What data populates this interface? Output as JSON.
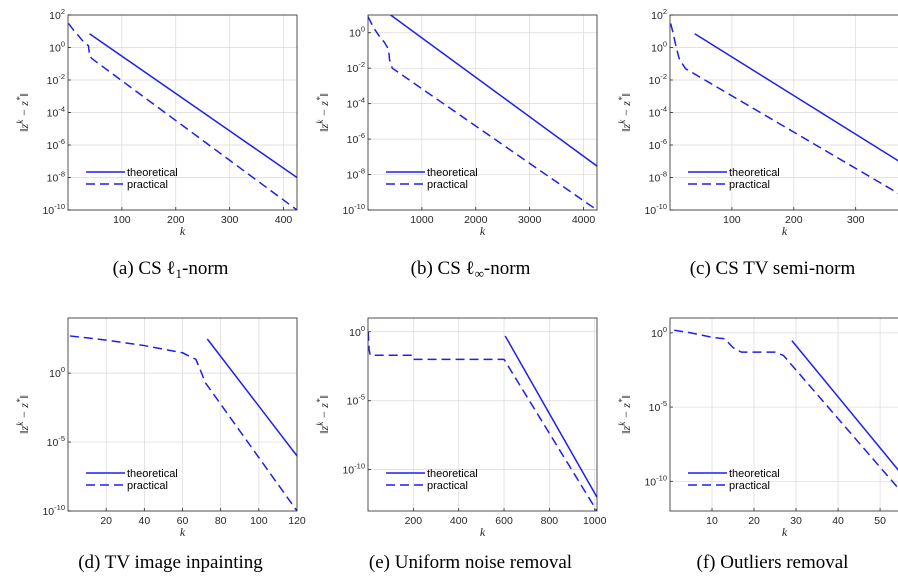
{
  "chart_data": [
    {
      "type": "line",
      "caption": "(a) CS ℓ1-norm",
      "xlabel": "k",
      "ylabel": "||z^k − z*||",
      "yscale": "log",
      "xlim": [
        0,
        425
      ],
      "ylim": [
        1e-10,
        100
      ],
      "xticks": [
        100,
        200,
        300,
        400
      ],
      "yticks": [
        1e-10,
        1e-08,
        1e-06,
        0.0001,
        0.01,
        1,
        100
      ],
      "grid": true,
      "legend": "bottom-left",
      "series": [
        {
          "name": "theoretical",
          "style": "solid",
          "points": [
            [
              40,
              7
            ],
            [
              425,
              1e-08
            ]
          ]
        },
        {
          "name": "practical",
          "style": "dashed",
          "points": [
            [
              1,
              30
            ],
            [
              10,
              12
            ],
            [
              20,
              5
            ],
            [
              30,
              2
            ],
            [
              38,
              1.3
            ],
            [
              40,
              0.3
            ],
            [
              45,
              0.2
            ],
            [
              425,
              1e-10
            ]
          ]
        }
      ]
    },
    {
      "type": "line",
      "caption": "(b) CS ℓ∞-norm",
      "xlabel": "k",
      "ylabel": "||z^k − z*||",
      "yscale": "log",
      "xlim": [
        0,
        4250
      ],
      "ylim": [
        1e-10,
        10
      ],
      "xticks": [
        1000,
        2000,
        3000,
        4000
      ],
      "yticks": [
        1e-10,
        1e-08,
        1e-06,
        0.0001,
        0.01,
        1
      ],
      "grid": true,
      "legend": "bottom-left",
      "series": [
        {
          "name": "theoretical",
          "style": "solid",
          "points": [
            [
              420,
              10
            ],
            [
              4250,
              3e-08
            ]
          ]
        },
        {
          "name": "practical",
          "style": "dashed",
          "points": [
            [
              1,
              8
            ],
            [
              100,
              2
            ],
            [
              200,
              0.7
            ],
            [
              300,
              0.3
            ],
            [
              380,
              0.12
            ],
            [
              400,
              0.03
            ],
            [
              450,
              0.01
            ],
            [
              4250,
              1e-10
            ]
          ]
        }
      ]
    },
    {
      "type": "line",
      "caption": "(c) CS TV semi-norm",
      "xlabel": "k",
      "ylabel": "||z^k − z*||",
      "yscale": "log",
      "xlim": [
        0,
        370
      ],
      "ylim": [
        1e-10,
        100
      ],
      "xticks": [
        100,
        200,
        300
      ],
      "yticks": [
        1e-10,
        1e-08,
        1e-06,
        0.0001,
        0.01,
        1,
        100
      ],
      "grid": true,
      "legend": "bottom-left",
      "series": [
        {
          "name": "theoretical",
          "style": "solid",
          "points": [
            [
              40,
              7
            ],
            [
              370,
              1e-07
            ]
          ]
        },
        {
          "name": "practical",
          "style": "dashed",
          "points": [
            [
              1,
              30
            ],
            [
              5,
              8
            ],
            [
              10,
              1
            ],
            [
              15,
              0.2
            ],
            [
              25,
              0.05
            ],
            [
              370,
              1e-09
            ]
          ]
        }
      ]
    },
    {
      "type": "line",
      "caption": "(d) TV image inpainting",
      "xlabel": "k",
      "ylabel": "||z^k − z*||",
      "yscale": "log",
      "xlim": [
        0,
        120
      ],
      "ylim": [
        1e-10,
        10000.0
      ],
      "xticks": [
        20,
        40,
        60,
        80,
        100,
        120
      ],
      "yticks": [
        1e-10,
        1e-05,
        1
      ],
      "grid": true,
      "legend": "bottom-left",
      "series": [
        {
          "name": "theoretical",
          "style": "solid",
          "points": [
            [
              73,
              300
            ],
            [
              120,
              1e-06
            ]
          ]
        },
        {
          "name": "practical",
          "style": "dashed",
          "points": [
            [
              1,
              500
            ],
            [
              20,
              250
            ],
            [
              40,
              100
            ],
            [
              60,
              30
            ],
            [
              67,
              10
            ],
            [
              70,
              1
            ],
            [
              72,
              0.2
            ],
            [
              120,
              1e-10
            ]
          ]
        }
      ]
    },
    {
      "type": "line",
      "caption": "(e) Uniform noise removal",
      "xlabel": "k",
      "ylabel": "||z^k − z*||",
      "yscale": "log",
      "xlim": [
        0,
        1010
      ],
      "ylim": [
        1e-13,
        10
      ],
      "xticks": [
        200,
        400,
        600,
        800,
        1000
      ],
      "yticks": [
        1e-10,
        1e-05,
        1
      ],
      "grid": true,
      "legend": "bottom-left",
      "series": [
        {
          "name": "theoretical",
          "style": "solid",
          "points": [
            [
              605,
              0.5
            ],
            [
              1010,
              1e-12
            ]
          ]
        },
        {
          "name": "practical",
          "style": "dashed",
          "points": [
            [
              1,
              1
            ],
            [
              5,
              0.05
            ],
            [
              10,
              0.02
            ],
            [
              195,
              0.02
            ],
            [
              200,
              0.01
            ],
            [
              600,
              0.01
            ],
            [
              1010,
              1e-13
            ]
          ]
        }
      ]
    },
    {
      "type": "line",
      "caption": "(f) Outliers removal",
      "xlabel": "k",
      "ylabel": "||z^k − z*||",
      "yscale": "log",
      "xlim": [
        0,
        54.5
      ],
      "ylim": [
        1e-12,
        10
      ],
      "xticks": [
        10,
        20,
        30,
        40,
        50
      ],
      "yticks": [
        1e-10,
        1e-05,
        1
      ],
      "grid": true,
      "legend": "bottom-left",
      "series": [
        {
          "name": "theoretical",
          "style": "solid",
          "points": [
            [
              29,
              0.3
            ],
            [
              54.5,
              5e-10
            ]
          ]
        },
        {
          "name": "practical",
          "style": "dashed",
          "points": [
            [
              1,
              1.5
            ],
            [
              5,
              1
            ],
            [
              10,
              0.5
            ],
            [
              13,
              0.4
            ],
            [
              15,
              0.1
            ],
            [
              17,
              0.05
            ],
            [
              25,
              0.05
            ],
            [
              27,
              0.03
            ],
            [
              54.5,
              3e-11
            ]
          ]
        }
      ]
    }
  ]
}
